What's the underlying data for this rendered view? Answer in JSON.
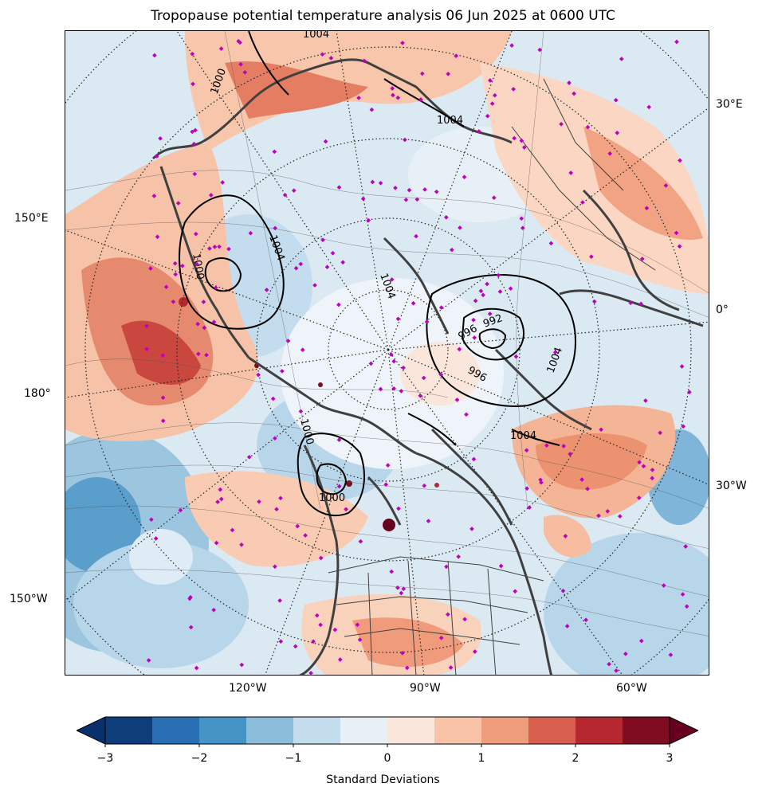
{
  "title": "Tropopause potential temperature analysis 06 Jun 2025 at 0600 UTC",
  "map": {
    "projection": "north-polar-stereographic",
    "longitude_labels": {
      "left": [
        "150°E",
        "180°",
        "150°W"
      ],
      "right": [
        "30°E",
        "0°",
        "30°W"
      ],
      "bottom": [
        "120°W",
        "90°W",
        "60°W"
      ]
    },
    "pressure_contours": {
      "color": "#000000",
      "labels": [
        "1004",
        "1004",
        "1004",
        "1004",
        "1004",
        "1000",
        "1000",
        "1000",
        "1000",
        "996",
        "996",
        "992",
        "1004"
      ]
    },
    "station_marker_color": "#c000c0",
    "coastline_color": "#404040"
  },
  "colorbar": {
    "label": "Standard Deviations",
    "ticks": [
      "−3",
      "−2",
      "−1",
      "0",
      "1",
      "2",
      "3"
    ],
    "colors": [
      "#08306b",
      "#0e3e7a",
      "#2a6fb3",
      "#4594c6",
      "#8cbedb",
      "#c3ddec",
      "#e8f0f7",
      "#fbe6dc",
      "#f8c3a6",
      "#f09d7d",
      "#d6604d",
      "#b62830",
      "#7f0c20",
      "#67001f"
    ],
    "extend": "both",
    "range": [
      -3,
      3
    ]
  }
}
